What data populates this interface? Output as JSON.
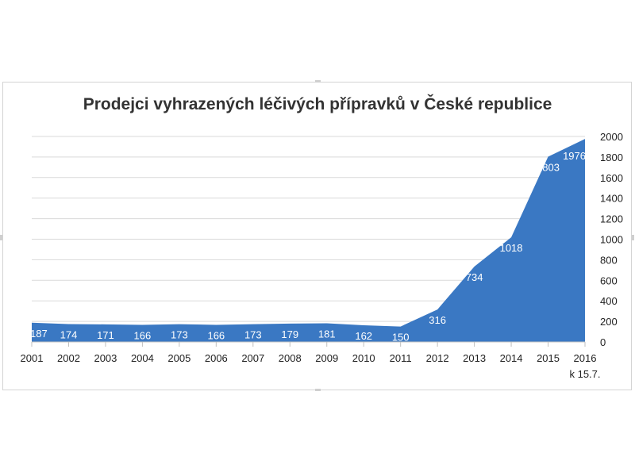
{
  "chart_data": {
    "type": "area",
    "title": "Prodejci vyhrazených léčivých přípravků v České republice",
    "categories": [
      "2001",
      "2002",
      "2003",
      "2004",
      "2005",
      "2006",
      "2007",
      "2008",
      "2009",
      "2010",
      "2011",
      "2012",
      "2013",
      "2014",
      "2015",
      "2016"
    ],
    "category_sublabels": {
      "2016": "k 15.7."
    },
    "series": [
      {
        "values": [
          187,
          174,
          171,
          166,
          173,
          166,
          173,
          179,
          181,
          162,
          150,
          316,
          734,
          1018,
          1803,
          1976
        ],
        "color": "#3a78c3",
        "data_labels": true
      }
    ],
    "y_axis": {
      "position": "right",
      "ylim": [
        0,
        2000
      ],
      "ticks": [
        0,
        200,
        400,
        600,
        800,
        1000,
        1200,
        1400,
        1600,
        1800,
        2000
      ]
    },
    "grid": true,
    "legend": "none"
  }
}
